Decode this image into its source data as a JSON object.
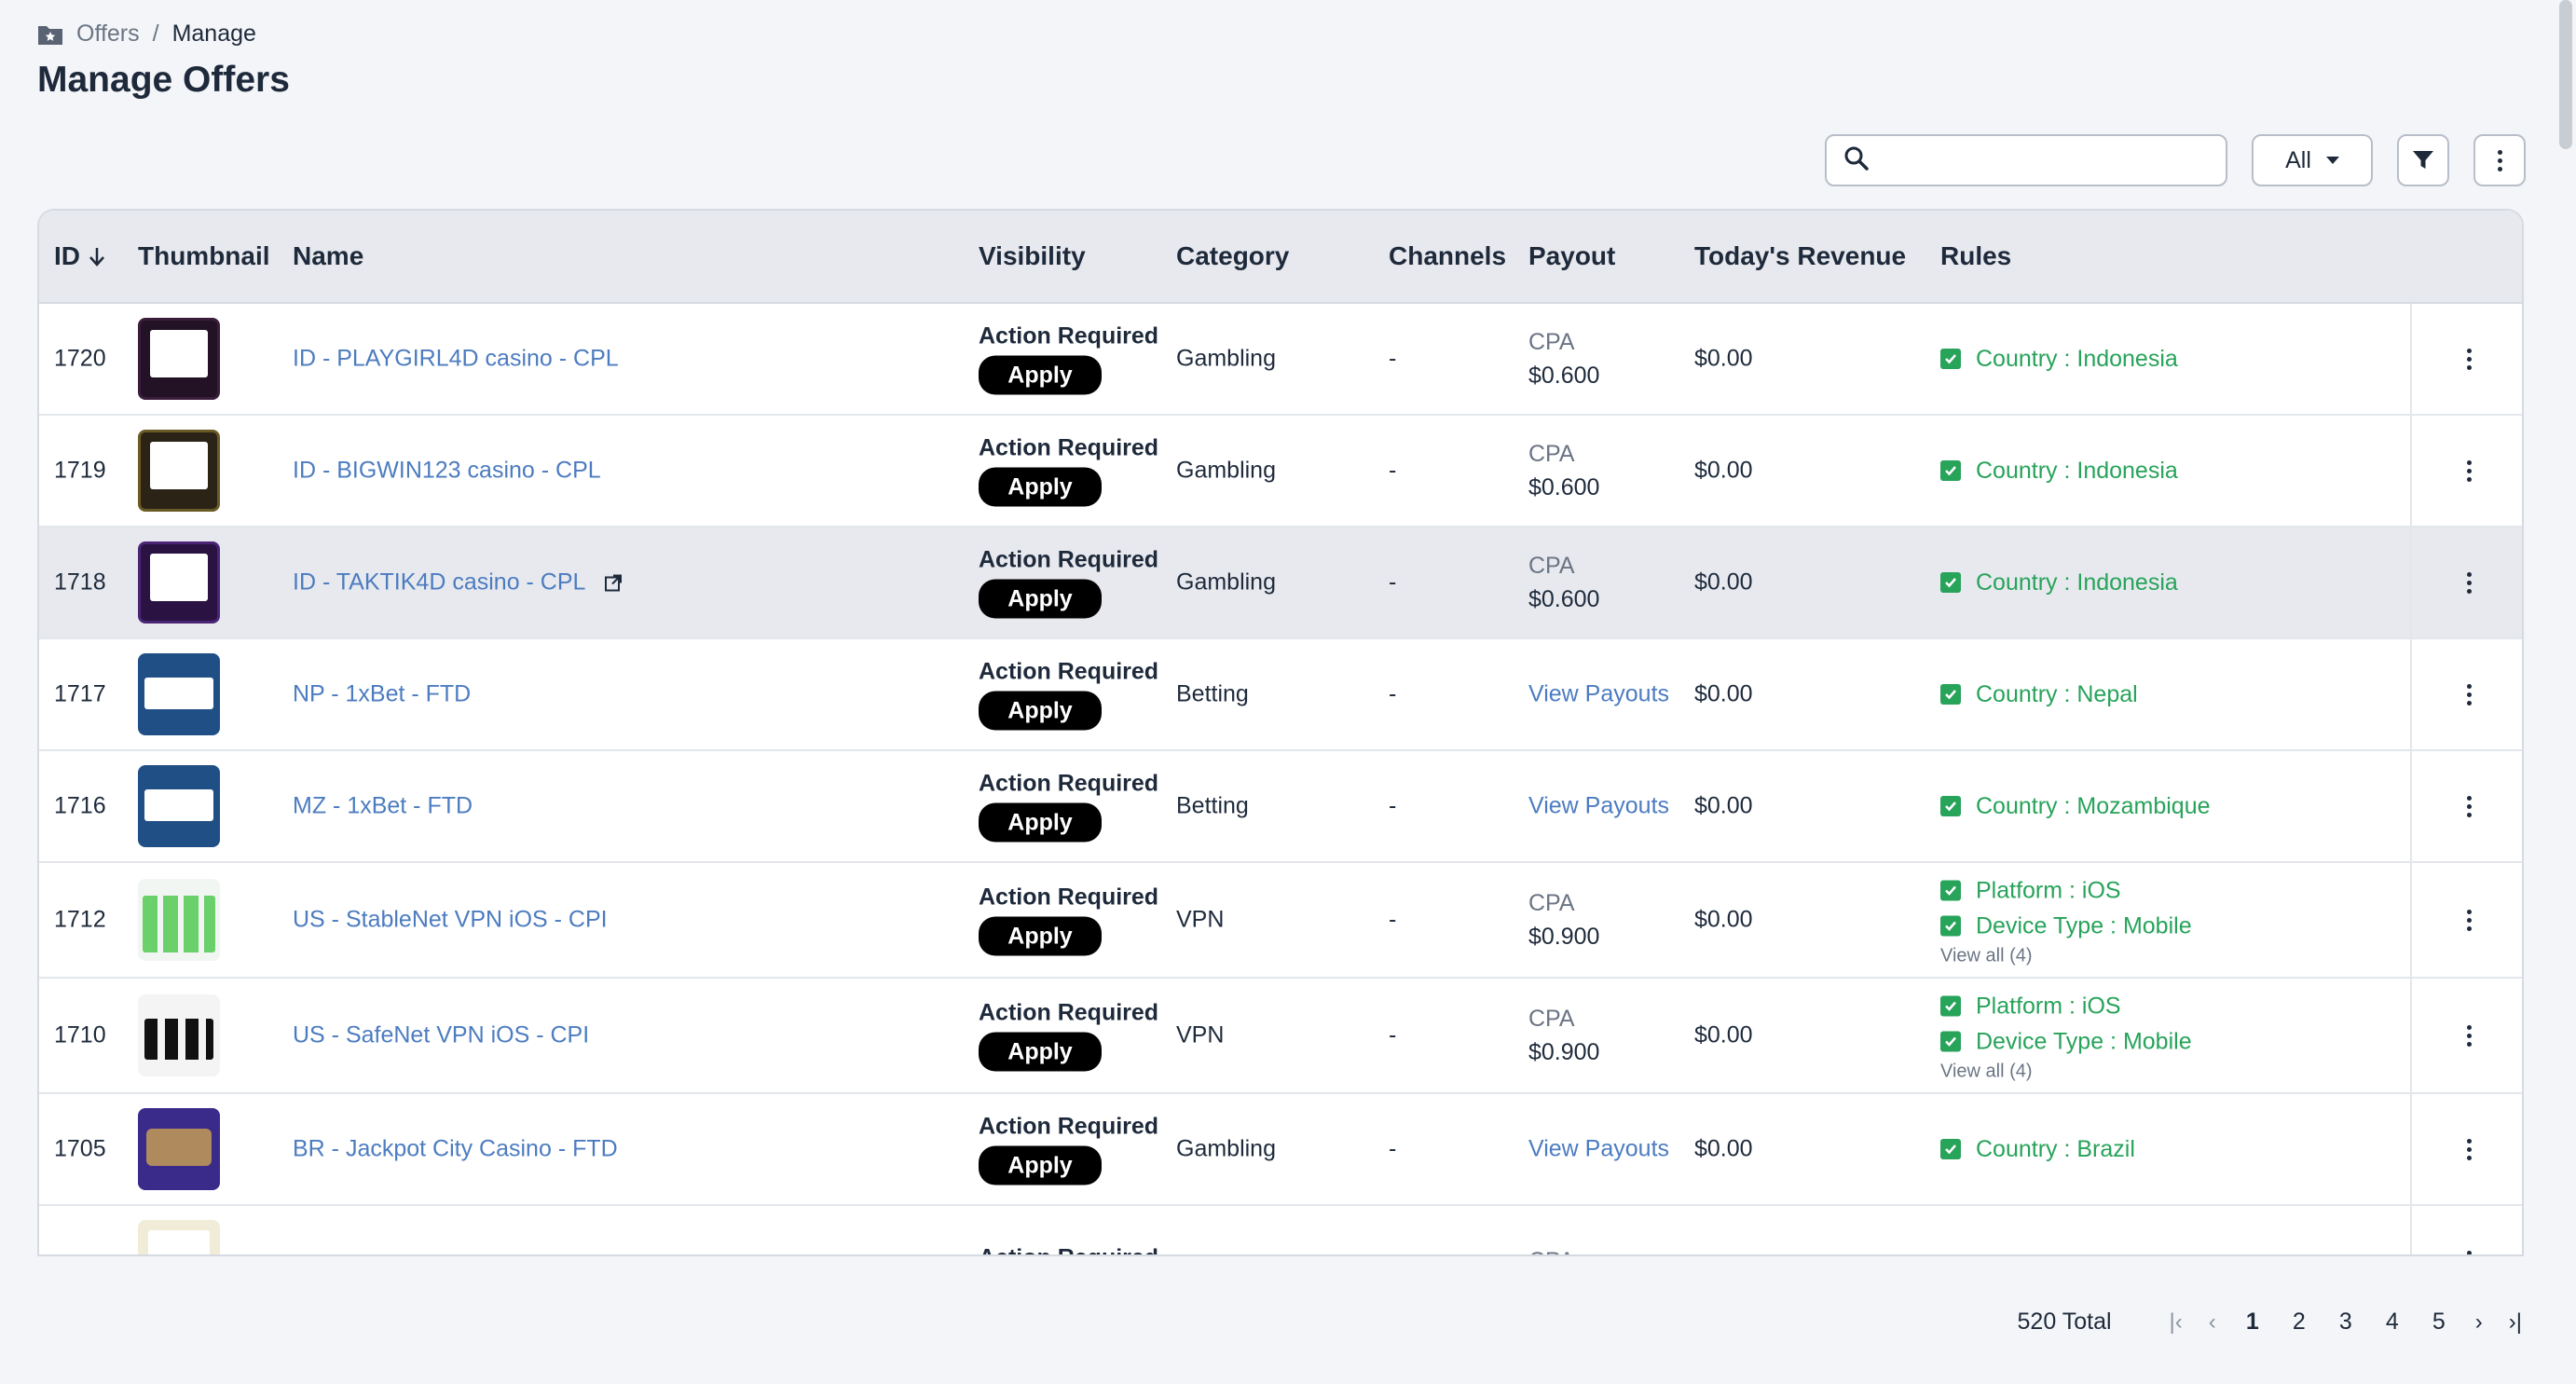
{
  "breadcrumb": {
    "root": "Offers",
    "separator": "/",
    "current": "Manage"
  },
  "page_title": "Manage Offers",
  "toolbar": {
    "search_placeholder": "",
    "filter_value": "All"
  },
  "table": {
    "headers": {
      "id": "ID",
      "thumbnail": "Thumbnail",
      "name": "Name",
      "visibility": "Visibility",
      "category": "Category",
      "channels": "Channels",
      "payout": "Payout",
      "revenue": "Today's Revenue",
      "rules": "Rules"
    },
    "rows": [
      {
        "id": "1720",
        "name": "ID - PLAYGIRL4D casino - CPL",
        "visibility": "Action Required",
        "apply": "Apply",
        "category": "Gambling",
        "channels": "-",
        "payout_type": "CPA",
        "payout_value": "$0.600",
        "revenue": "$0.00",
        "rules": [
          "Country : Indonesia"
        ]
      },
      {
        "id": "1719",
        "name": "ID - BIGWIN123 casino - CPL",
        "visibility": "Action Required",
        "apply": "Apply",
        "category": "Gambling",
        "channels": "-",
        "payout_type": "CPA",
        "payout_value": "$0.600",
        "revenue": "$0.00",
        "rules": [
          "Country : Indonesia"
        ]
      },
      {
        "id": "1718",
        "name": "ID - TAKTIK4D casino - CPL",
        "visibility": "Action Required",
        "apply": "Apply",
        "category": "Gambling",
        "channels": "-",
        "payout_type": "CPA",
        "payout_value": "$0.600",
        "revenue": "$0.00",
        "rules": [
          "Country : Indonesia"
        ]
      },
      {
        "id": "1717",
        "name": "NP - 1xBet - FTD",
        "visibility": "Action Required",
        "apply": "Apply",
        "category": "Betting",
        "channels": "-",
        "payout_link": "View Payouts",
        "revenue": "$0.00",
        "rules": [
          "Country : Nepal"
        ]
      },
      {
        "id": "1716",
        "name": "MZ - 1xBet - FTD",
        "visibility": "Action Required",
        "apply": "Apply",
        "category": "Betting",
        "channels": "-",
        "payout_link": "View Payouts",
        "revenue": "$0.00",
        "rules": [
          "Country : Mozambique"
        ]
      },
      {
        "id": "1712",
        "name": "US - StableNet VPN iOS - CPI",
        "visibility": "Action Required",
        "apply": "Apply",
        "category": "VPN",
        "channels": "-",
        "payout_type": "CPA",
        "payout_value": "$0.900",
        "revenue": "$0.00",
        "rules": [
          "Platform : iOS",
          "Device Type : Mobile"
        ],
        "view_all": "View all (4)"
      },
      {
        "id": "1710",
        "name": "US - SafeNet VPN iOS - CPI",
        "visibility": "Action Required",
        "apply": "Apply",
        "category": "VPN",
        "channels": "-",
        "payout_type": "CPA",
        "payout_value": "$0.900",
        "revenue": "$0.00",
        "rules": [
          "Platform : iOS",
          "Device Type : Mobile"
        ],
        "view_all": "View all (4)"
      },
      {
        "id": "1705",
        "name": "BR - Jackpot City Casino - FTD",
        "visibility": "Action Required",
        "apply": "Apply",
        "category": "Gambling",
        "channels": "-",
        "payout_link": "View Payouts",
        "revenue": "$0.00",
        "rules": [
          "Country : Brazil"
        ]
      },
      {
        "id": "",
        "name": "",
        "visibility": "Action Required",
        "category": "",
        "channels": "",
        "payout_type": "CPA",
        "revenue": "",
        "rules": []
      }
    ]
  },
  "pagination": {
    "total": "520 Total",
    "pages": [
      "1",
      "2",
      "3",
      "4",
      "5"
    ],
    "current": "1"
  },
  "colors": {
    "link": "#4c7cc0",
    "rule_green": "#27a35a",
    "header_bg": "#e7e9ee",
    "highlight_row": "#e7e9ee"
  },
  "icons": {
    "breadcrumb": "folder-star-icon",
    "search": "search-icon",
    "filter": "filter-icon",
    "more": "kebab-menu-icon",
    "sort": "arrow-down-icon",
    "external": "external-link-icon",
    "check": "checkbox-checked-icon"
  }
}
